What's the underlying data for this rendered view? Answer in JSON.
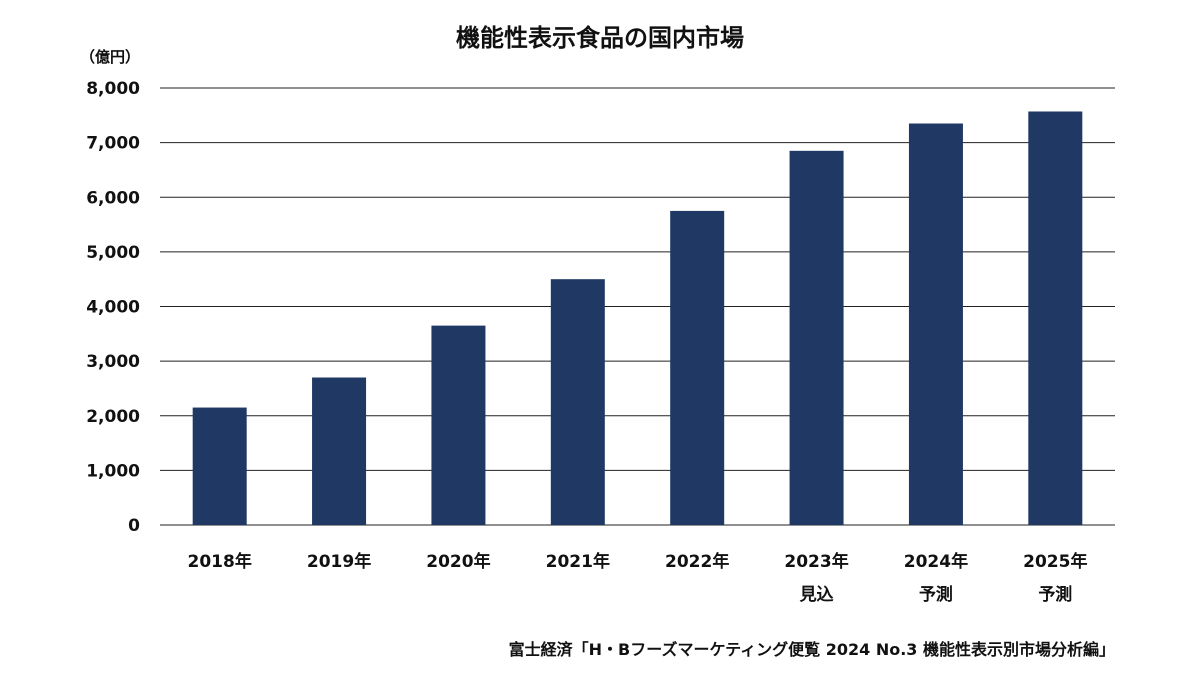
{
  "chart_data": {
    "type": "bar",
    "title": "機能性表示食品の国内市場",
    "unit_label": "（億円）",
    "categories": [
      [
        "2018年"
      ],
      [
        "2019年"
      ],
      [
        "2020年"
      ],
      [
        "2021年"
      ],
      [
        "2022年"
      ],
      [
        "2023年",
        "見込"
      ],
      [
        "2024年",
        "予測"
      ],
      [
        "2025年",
        "予測"
      ]
    ],
    "values": [
      2150,
      2700,
      3650,
      4500,
      5750,
      6850,
      7350,
      7570
    ],
    "ylim": [
      0,
      8000
    ],
    "yticks": [
      {
        "value": 0,
        "label": "0"
      },
      {
        "value": 1000,
        "label": "1,000"
      },
      {
        "value": 2000,
        "label": "2,000"
      },
      {
        "value": 3000,
        "label": "3,000"
      },
      {
        "value": 4000,
        "label": "4,000"
      },
      {
        "value": 5000,
        "label": "5,000"
      },
      {
        "value": 6000,
        "label": "6,000"
      },
      {
        "value": 7000,
        "label": "7,000"
      },
      {
        "value": 8000,
        "label": "8,000"
      }
    ],
    "grid": true,
    "bar_color": "#1f3864",
    "source": "富士経済「H・Bフーズマーケティング便覧 2024 No.3 機能性表示別市場分析編」"
  }
}
